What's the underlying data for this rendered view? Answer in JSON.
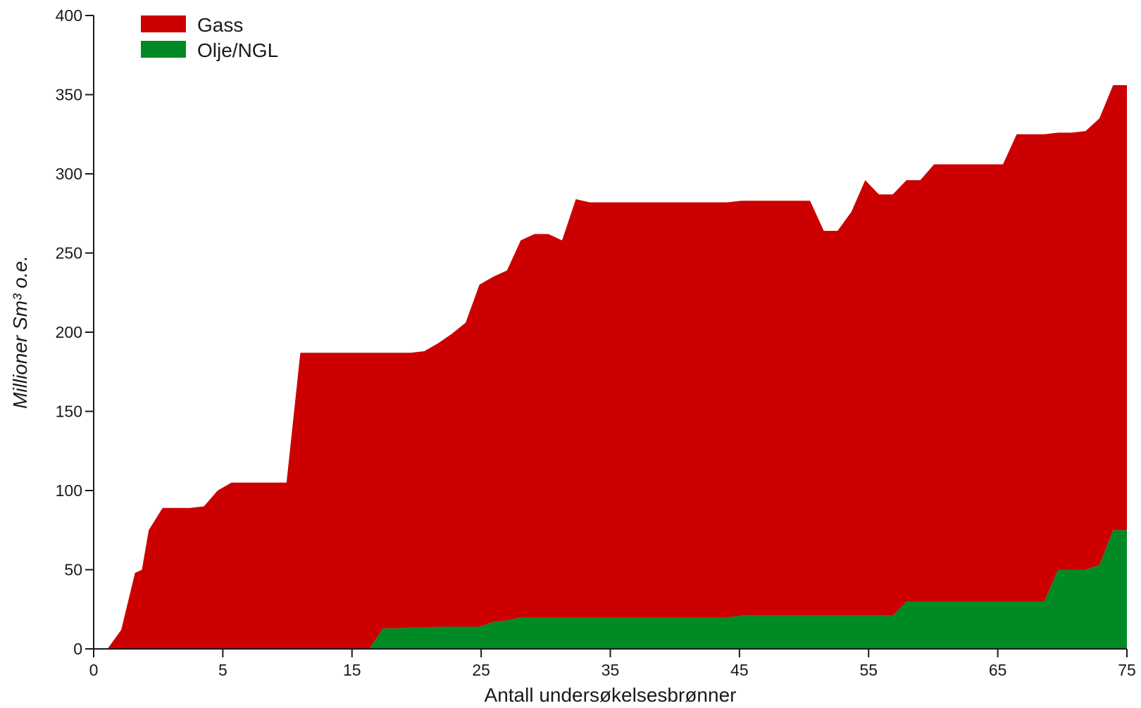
{
  "chart_data": {
    "type": "area",
    "stacked": true,
    "xlabel": "Antall undersøkelsesbrønner",
    "ylabel": "Millioner Sm³ o.e.",
    "ylim": [
      0,
      400
    ],
    "yticks": [
      "0",
      "50",
      "100",
      "150",
      "200",
      "250",
      "300",
      "350",
      "400"
    ],
    "xticks": [
      "0",
      "5",
      "15",
      "25",
      "35",
      "45",
      "55",
      "65",
      "75"
    ],
    "legend_position": "top-left",
    "x": [
      0,
      1,
      2,
      3,
      3.5,
      4,
      5,
      6,
      7,
      8,
      9,
      10,
      11,
      12,
      13,
      14,
      15,
      16,
      17,
      18,
      19,
      20,
      21,
      22,
      23,
      24,
      25,
      26,
      27,
      28,
      29,
      30,
      31,
      32,
      33,
      34,
      35,
      36,
      37,
      38,
      39,
      40,
      41,
      42,
      43,
      44,
      45,
      46,
      47,
      48,
      49,
      50,
      51,
      52,
      53,
      54,
      55,
      56,
      57,
      58,
      59,
      60,
      61,
      62,
      63,
      64,
      65,
      66,
      67,
      68,
      69,
      70,
      71,
      72,
      73,
      74,
      75
    ],
    "series": [
      {
        "name": "Olje/NGL",
        "color": "#008a25",
        "values": [
          0,
          0,
          0,
          0,
          0,
          0,
          0,
          0,
          0,
          0,
          0,
          0,
          0,
          0,
          0,
          0,
          0,
          0,
          0,
          0,
          0,
          0,
          13,
          13,
          13.5,
          13.5,
          14,
          14,
          14,
          14,
          17,
          18,
          20,
          20,
          20,
          20,
          20,
          20,
          20,
          20,
          20,
          20,
          20,
          20,
          20,
          20,
          20,
          20,
          21,
          21,
          21,
          21,
          21,
          21,
          21,
          21,
          21,
          21,
          21,
          21,
          30,
          30,
          30,
          30,
          30,
          30,
          30,
          30,
          30,
          30,
          30,
          50,
          50,
          50,
          53,
          75,
          75
        ]
      },
      {
        "name": "Gass",
        "color": "#cc0000",
        "values": [
          0,
          0,
          12,
          48,
          50,
          75,
          89,
          89,
          89,
          90,
          100,
          105,
          105,
          105,
          105,
          105,
          187,
          187,
          187,
          187,
          187,
          187,
          174,
          174,
          173.5,
          174.5,
          179,
          185,
          192,
          216,
          218,
          221,
          238,
          242,
          242,
          238,
          264,
          262,
          262,
          262,
          262,
          262,
          262,
          262,
          262,
          262,
          262,
          262,
          262,
          262,
          262,
          262,
          262,
          262,
          243,
          243,
          255,
          275,
          266,
          266,
          266,
          266,
          276,
          276,
          276,
          276,
          276,
          276,
          295,
          295,
          295,
          276,
          276,
          277,
          282,
          281,
          281
        ]
      }
    ]
  }
}
